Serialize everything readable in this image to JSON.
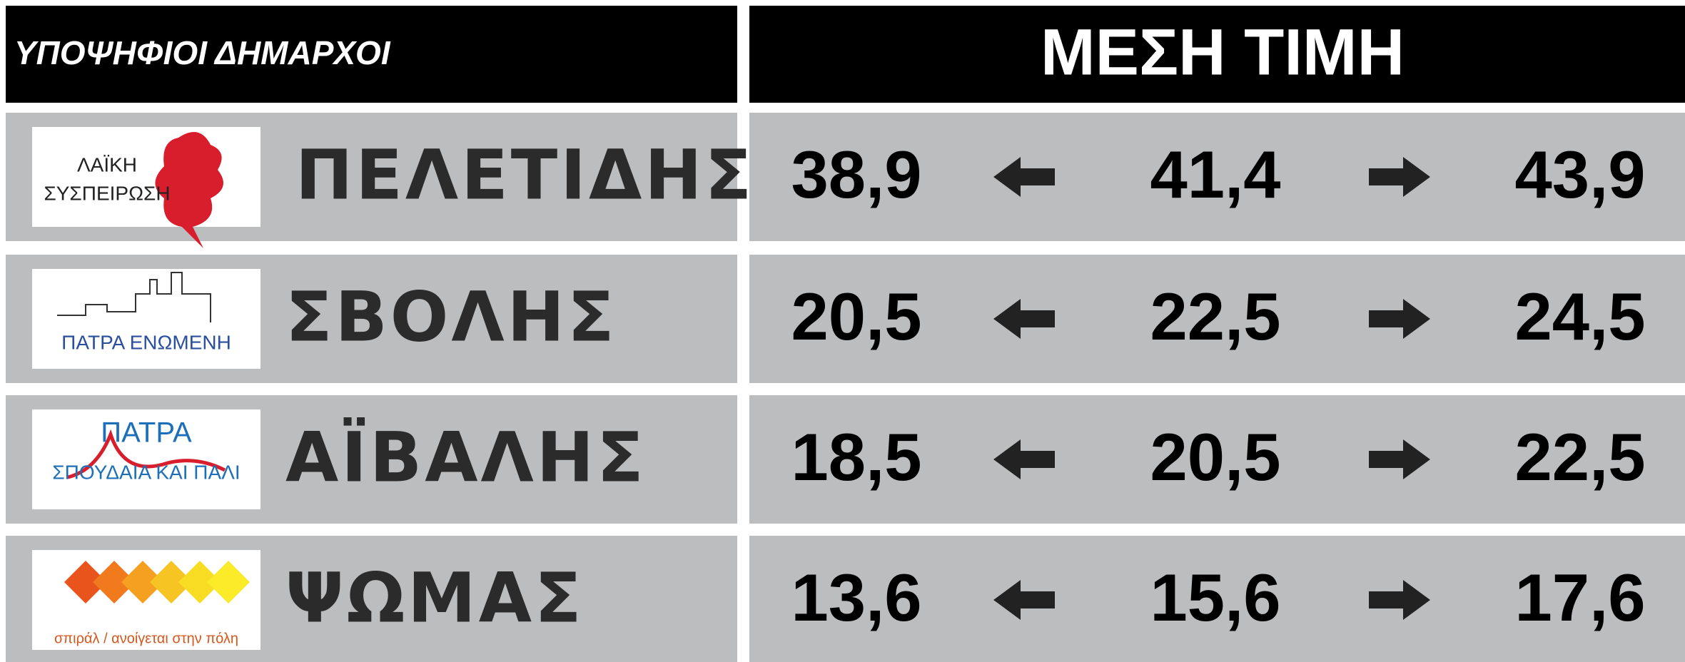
{
  "header": {
    "left_title": "ΥΠΟΨΗΦΙΟΙ ΔΗΜΑΡΧΟΙ",
    "right_title": "ΜΕΣΗ ΤΙΜΗ"
  },
  "rows": [
    {
      "logo": [
        "ΛΑΪΚΗ",
        "ΣΥΣΠΕΙΡΩΣΗ"
      ],
      "name": "ΠΕΛΕΤΙΔΗΣ",
      "low": "38,9",
      "mid": "41,4",
      "high": "43,9"
    },
    {
      "logo": [
        "ΠΑΤΡΑ ΕΝΩΜΕΝΗ"
      ],
      "name": "ΣΒΟΛΗΣ",
      "low": "20,5",
      "mid": "22,5",
      "high": "24,5"
    },
    {
      "logo": [
        "ΠΑΤΡΑ",
        "ΣΠΟΥΔΑΙΑ ΚΑΙ ΠΑΛΙ"
      ],
      "name": "ΑΪΒΑΛΗΣ",
      "low": "18,5",
      "mid": "20,5",
      "high": "22,5"
    },
    {
      "logo": [
        "σπιράλ / ανοίγεται στην πόλη"
      ],
      "name": "ΨΩΜΑΣ",
      "low": "13,6",
      "mid": "15,6",
      "high": "17,6"
    }
  ]
}
